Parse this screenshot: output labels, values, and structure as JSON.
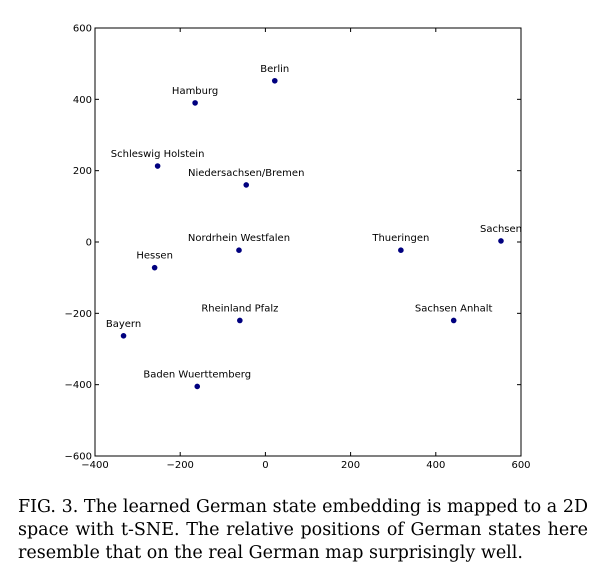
{
  "chart_data": {
    "type": "scatter",
    "title": "",
    "xlabel": "",
    "ylabel": "",
    "xlim": [
      -400,
      600
    ],
    "ylim": [
      -600,
      600
    ],
    "xticks": [
      -400,
      -200,
      0,
      200,
      400,
      600
    ],
    "yticks": [
      -600,
      -400,
      -200,
      0,
      200,
      400,
      600
    ],
    "xtick_labels": [
      "−400",
      "−200",
      "0",
      "200",
      "400",
      "600"
    ],
    "ytick_labels": [
      "−600",
      "−400",
      "−200",
      "0",
      "200",
      "400",
      "600"
    ],
    "grid": false,
    "point_color": "#00007f",
    "points": [
      {
        "label": "Berlin",
        "x": 22,
        "y": 452
      },
      {
        "label": "Hamburg",
        "x": -165,
        "y": 390
      },
      {
        "label": "Schleswig Holstein",
        "x": -253,
        "y": 213
      },
      {
        "label": "Niedersachsen/Bremen",
        "x": -45,
        "y": 160
      },
      {
        "label": "Nordrhein Westfalen",
        "x": -62,
        "y": -23
      },
      {
        "label": "Thueringen",
        "x": 318,
        "y": -23
      },
      {
        "label": "Sachsen",
        "x": 553,
        "y": 3
      },
      {
        "label": "Hessen",
        "x": -260,
        "y": -72
      },
      {
        "label": "Rheinland Pfalz",
        "x": -60,
        "y": -220
      },
      {
        "label": "Sachsen Anhalt",
        "x": 442,
        "y": -220
      },
      {
        "label": "Bayern",
        "x": -333,
        "y": -263
      },
      {
        "label": "Baden Wuerttemberg",
        "x": -160,
        "y": -405
      }
    ]
  },
  "caption": "FIG. 3. The learned German state embedding is mapped to a 2D space with t-SNE. The relative positions of German states here resemble that on the real German map surprisingly well."
}
